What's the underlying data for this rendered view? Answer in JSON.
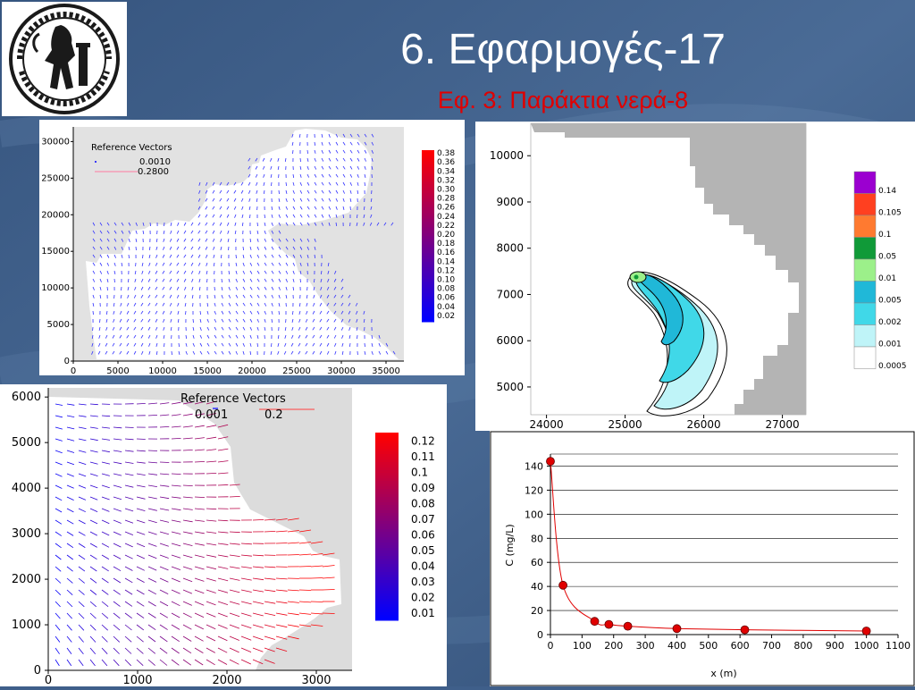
{
  "slide": {
    "title": "6. Εφαρμογές-17",
    "subtitle": "Εφ. 3: Παράκτια νερά-8"
  },
  "logo": {
    "type": "university-seal",
    "colors": {
      "ink": "#1a1a1a",
      "paper": "#ffffff"
    }
  },
  "colors": {
    "background": "#3f5f8a",
    "title": "#ffffff",
    "subtitle": "#e00000",
    "land": "#c8c8c8",
    "vector_low": "#0000ff",
    "vector_high": "#ff0000",
    "marker": "#e00000",
    "curve": "#e00000"
  },
  "chart_data": [
    {
      "type": "vector-field",
      "legend_title": "Reference Vectors",
      "reference_values": [
        "0.0010",
        "0.2800"
      ],
      "xticks": [
        "0",
        "5000",
        "10000",
        "15000",
        "20000",
        "25000",
        "30000",
        "35000"
      ],
      "yticks": [
        "0",
        "5000",
        "10000",
        "15000",
        "20000",
        "25000",
        "30000"
      ],
      "xlim": [
        0,
        37000
      ],
      "ylim": [
        0,
        32000
      ],
      "colorbar": [
        "0.38",
        "0.36",
        "0.34",
        "0.32",
        "0.30",
        "0.28",
        "0.26",
        "0.24",
        "0.22",
        "0.20",
        "0.18",
        "0.16",
        "0.14",
        "0.12",
        "0.10",
        "0.08",
        "0.06",
        "0.04",
        "0.02"
      ]
    },
    {
      "type": "contour",
      "xticks": [
        "24000",
        "25000",
        "26000",
        "27000"
      ],
      "yticks": [
        "5000",
        "6000",
        "7000",
        "8000",
        "9000",
        "10000"
      ],
      "xlim": [
        23800,
        27300
      ],
      "ylim": [
        4400,
        10700
      ],
      "legend": [
        {
          "label": "0.14",
          "color": "#9b00d0"
        },
        {
          "label": "0.105",
          "color": "#ff4020"
        },
        {
          "label": "0.1",
          "color": "#ff7a30"
        },
        {
          "label": "0.05",
          "color": "#109a38"
        },
        {
          "label": "0.01",
          "color": "#9cf08a"
        },
        {
          "label": "0.005",
          "color": "#20b8d8"
        },
        {
          "label": "0.002",
          "color": "#40d8e8"
        },
        {
          "label": "0.001",
          "color": "#bff4f8"
        },
        {
          "label": "0.0005",
          "color": "#ffffff"
        }
      ]
    },
    {
      "type": "vector-field",
      "legend_title": "Reference Vectors",
      "reference_values": [
        "0.001",
        "0.2"
      ],
      "xticks": [
        "0",
        "1000",
        "2000",
        "3000"
      ],
      "yticks": [
        "0",
        "1000",
        "2000",
        "3000",
        "4000",
        "5000",
        "6000"
      ],
      "xlim": [
        0,
        3400
      ],
      "ylim": [
        0,
        6200
      ],
      "colorbar": [
        "0.12",
        "0.11",
        "0.1",
        "0.09",
        "0.08",
        "0.07",
        "0.06",
        "0.05",
        "0.04",
        "0.03",
        "0.02",
        "0.01"
      ]
    },
    {
      "type": "line",
      "xlabel": "x (m)",
      "ylabel": "C (mg/L)",
      "xlim": [
        0,
        1100
      ],
      "ylim": [
        0,
        150
      ],
      "xticks": [
        0,
        100,
        200,
        300,
        400,
        500,
        600,
        700,
        800,
        900,
        1000,
        1100
      ],
      "yticks": [
        0,
        20,
        40,
        60,
        80,
        100,
        120,
        140
      ],
      "grid": true,
      "x": [
        0,
        40,
        140,
        185,
        245,
        400,
        615,
        1000
      ],
      "y": [
        144,
        41,
        11,
        8.5,
        7,
        5,
        4,
        3
      ]
    }
  ]
}
